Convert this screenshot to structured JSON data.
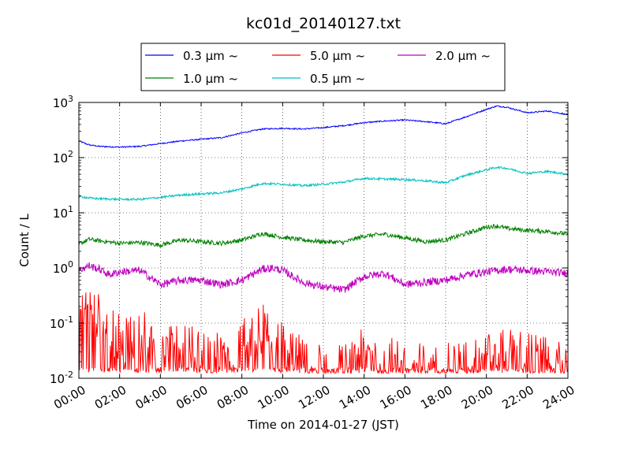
{
  "chart_data": {
    "type": "line",
    "title": "kc01d_20140127.txt",
    "xlabel": "Time on 2014-01-27 (JST)",
    "ylabel": "Count / L",
    "x_unit": "hour",
    "xlim": [
      0,
      24
    ],
    "ylim": [
      0.01,
      1000
    ],
    "yscale": "log",
    "grid": true,
    "legend_position": "top-center, above plot",
    "x_tick_labels": [
      "00:00",
      "02:00",
      "04:00",
      "06:00",
      "08:00",
      "10:00",
      "12:00",
      "14:00",
      "16:00",
      "18:00",
      "20:00",
      "22:00",
      "24:00"
    ],
    "y_ticks": [
      {
        "base": "10",
        "exp": "-2"
      },
      {
        "base": "10",
        "exp": "-1"
      },
      {
        "base": "10",
        "exp": "0"
      },
      {
        "base": "10",
        "exp": "1"
      },
      {
        "base": "10",
        "exp": "2"
      },
      {
        "base": "10",
        "exp": "3"
      }
    ],
    "series": [
      {
        "name": "0.3 μm ~",
        "color": "#0000ff",
        "x": [
          0,
          0.5,
          1,
          2,
          3,
          4,
          5,
          6,
          7,
          8,
          9,
          10,
          11,
          12,
          13,
          14,
          15,
          16,
          17,
          18,
          19,
          20,
          20.5,
          21,
          22,
          23,
          24
        ],
        "values": [
          200,
          170,
          160,
          155,
          160,
          180,
          200,
          215,
          230,
          280,
          330,
          340,
          330,
          350,
          380,
          430,
          460,
          480,
          450,
          410,
          550,
          750,
          860,
          820,
          650,
          700,
          600
        ]
      },
      {
        "name": "1.0 μm ~",
        "color": "#008000",
        "x": [
          0,
          0.5,
          1,
          2,
          3,
          4,
          5,
          6,
          7,
          8,
          9,
          10,
          11,
          12,
          13,
          14,
          15,
          16,
          17,
          18,
          19,
          20,
          20.5,
          21,
          22,
          23,
          24
        ],
        "values": [
          2.7,
          3.3,
          3.1,
          2.8,
          2.9,
          2.6,
          3.2,
          3.0,
          2.8,
          3.2,
          4.2,
          3.6,
          3.2,
          3.0,
          2.9,
          3.8,
          4.1,
          3.5,
          3.0,
          3.2,
          4.2,
          5.5,
          5.8,
          5.2,
          4.8,
          4.6,
          4.1
        ]
      },
      {
        "name": "5.0 μm ~",
        "color": "#ff0000",
        "x": [
          0,
          0.5,
          1,
          1.5,
          2,
          3,
          4,
          5,
          6,
          7,
          8,
          9,
          10,
          11,
          12,
          13,
          14,
          15,
          16,
          17,
          18,
          19,
          20,
          21,
          22,
          23,
          24
        ],
        "values": [
          0.15,
          0.2,
          0.12,
          0.08,
          0.05,
          0.07,
          0.03,
          0.04,
          0.03,
          0.025,
          0.05,
          0.08,
          0.04,
          0.02,
          0.015,
          0.015,
          0.03,
          0.02,
          0.02,
          0.015,
          0.015,
          0.02,
          0.035,
          0.03,
          0.025,
          0.02,
          0.015
        ]
      },
      {
        "name": "0.5 μm ~",
        "color": "#00bfbf",
        "x": [
          0,
          0.5,
          1,
          2,
          3,
          4,
          5,
          6,
          7,
          8,
          9,
          10,
          11,
          12,
          13,
          14,
          15,
          16,
          17,
          18,
          19,
          20,
          20.5,
          21,
          22,
          23,
          24
        ],
        "values": [
          20,
          18.5,
          18,
          17.5,
          17.5,
          19,
          21,
          22,
          23,
          27,
          34,
          33,
          31,
          33,
          36,
          42,
          41,
          40,
          38,
          35,
          48,
          60,
          67,
          64,
          52,
          56,
          50
        ]
      },
      {
        "name": "2.0 μm ~",
        "color": "#bf00bf",
        "x": [
          0,
          0.5,
          1,
          1.5,
          2,
          3,
          4,
          5,
          6,
          7,
          8,
          9,
          9.5,
          10,
          11,
          12,
          13,
          14,
          15,
          16,
          17,
          18,
          19,
          20,
          21,
          22,
          23,
          24
        ],
        "values": [
          0.9,
          1.1,
          0.95,
          0.75,
          0.85,
          0.9,
          0.5,
          0.6,
          0.6,
          0.5,
          0.6,
          0.95,
          1.0,
          0.9,
          0.55,
          0.45,
          0.4,
          0.7,
          0.8,
          0.5,
          0.55,
          0.6,
          0.75,
          0.85,
          0.95,
          0.9,
          0.85,
          0.8
        ]
      }
    ]
  }
}
